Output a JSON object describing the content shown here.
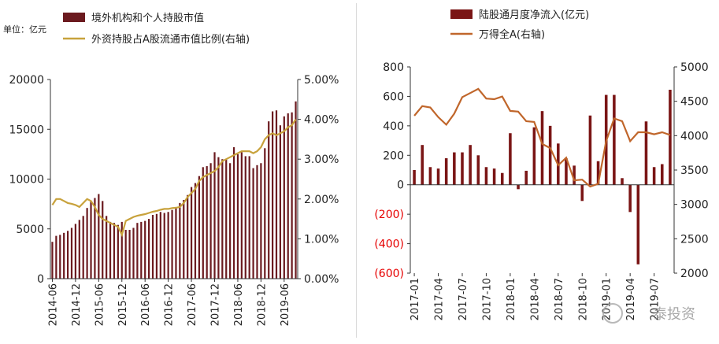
{
  "left": {
    "unit_label": "单位：亿元",
    "legend": {
      "bar": "境外机构和个人持股市值",
      "line": "外资持股占A股流通市值比例(右轴)"
    },
    "colors": {
      "bar": "#6b1a1f",
      "line": "#c8a23c"
    },
    "chart_data": {
      "type": "bar",
      "y_ticks": [
        "0",
        "5000",
        "10000",
        "15000",
        "20000"
      ],
      "ylim": [
        0,
        20000
      ],
      "y2_ticks": [
        "0.00%",
        "1.00%",
        "2.00%",
        "3.00%",
        "4.00%",
        "5.00%"
      ],
      "y2lim": [
        0,
        5
      ],
      "x_ticks": [
        "2014-06",
        "2014-12",
        "2015-06",
        "2015-12",
        "2016-06",
        "2016-12",
        "2017-06",
        "2017-12",
        "2018-06",
        "2018-12",
        "2019-06"
      ],
      "categories": [
        "2014-06",
        "2014-07",
        "2014-08",
        "2014-09",
        "2014-10",
        "2014-11",
        "2014-12",
        "2015-01",
        "2015-02",
        "2015-03",
        "2015-04",
        "2015-05",
        "2015-06",
        "2015-07",
        "2015-08",
        "2015-09",
        "2015-10",
        "2015-11",
        "2015-12",
        "2016-01",
        "2016-02",
        "2016-03",
        "2016-04",
        "2016-05",
        "2016-06",
        "2016-07",
        "2016-08",
        "2016-09",
        "2016-10",
        "2016-11",
        "2016-12",
        "2017-01",
        "2017-02",
        "2017-03",
        "2017-04",
        "2017-05",
        "2017-06",
        "2017-07",
        "2017-08",
        "2017-09",
        "2017-10",
        "2017-11",
        "2017-12",
        "2018-01",
        "2018-02",
        "2018-03",
        "2018-04",
        "2018-05",
        "2018-06",
        "2018-07",
        "2018-08",
        "2018-09",
        "2018-10",
        "2018-11",
        "2018-12",
        "2019-01",
        "2019-02",
        "2019-03",
        "2019-04",
        "2019-05",
        "2019-06",
        "2019-07",
        "2019-08",
        "2019-09"
      ],
      "series": [
        {
          "name": "境外机构和个人持股市值",
          "type": "bar",
          "axis": "left",
          "values": [
            3700,
            4300,
            4400,
            4600,
            4800,
            5100,
            5500,
            5900,
            6300,
            7100,
            7800,
            8100,
            8500,
            7800,
            6300,
            5700,
            5600,
            5400,
            5700,
            4900,
            4900,
            5100,
            5600,
            5700,
            5800,
            6000,
            6400,
            6500,
            6700,
            6600,
            6700,
            6900,
            7100,
            7600,
            7900,
            8400,
            9200,
            9600,
            10300,
            11200,
            11300,
            11600,
            12700,
            12200,
            12000,
            12000,
            11600,
            13200,
            12500,
            12700,
            12300,
            12300,
            11100,
            11400,
            11600,
            13100,
            15800,
            16800,
            16900,
            15400,
            16300,
            16600,
            16700,
            17800
          ]
        },
        {
          "name": "外资持股占A股流通市值比例(右轴)",
          "type": "line",
          "axis": "right",
          "values": [
            1.85,
            2.0,
            2.0,
            1.95,
            1.9,
            1.88,
            1.85,
            1.8,
            1.9,
            2.0,
            1.95,
            1.8,
            1.6,
            1.5,
            1.45,
            1.4,
            1.35,
            1.3,
            1.1,
            1.45,
            1.5,
            1.55,
            1.58,
            1.6,
            1.62,
            1.65,
            1.68,
            1.7,
            1.73,
            1.75,
            1.75,
            1.77,
            1.78,
            1.8,
            1.9,
            2.05,
            2.15,
            2.25,
            2.45,
            2.55,
            2.6,
            2.65,
            2.7,
            2.8,
            2.95,
            3.0,
            3.05,
            3.1,
            3.15,
            3.2,
            3.2,
            3.2,
            3.15,
            3.2,
            3.3,
            3.5,
            3.6,
            3.65,
            3.6,
            3.65,
            3.7,
            3.8,
            3.85,
            4.0
          ]
        }
      ]
    }
  },
  "right": {
    "legend": {
      "bar": "陆股通月度净流入(亿元)",
      "line": "万得全A(右轴)"
    },
    "colors": {
      "bar": "#7a1515",
      "line": "#c0662b",
      "negative_tick": "#e60000"
    },
    "chart_data": {
      "type": "bar",
      "y_ticks": [
        "(600)",
        "(400)",
        "(200)",
        "0",
        "200",
        "400",
        "600",
        "800"
      ],
      "ylim": [
        -600,
        800
      ],
      "y2_ticks": [
        "2000",
        "2500",
        "3000",
        "3500",
        "4000",
        "4500",
        "5000"
      ],
      "y2lim": [
        2000,
        5000
      ],
      "x_ticks": [
        "2017-01",
        "2017-04",
        "2017-07",
        "2017-10",
        "2018-01",
        "2018-04",
        "2018-07",
        "2018-10",
        "2019-01",
        "2019-04",
        "2019-07"
      ],
      "categories": [
        "2017-01",
        "2017-02",
        "2017-03",
        "2017-04",
        "2017-05",
        "2017-06",
        "2017-07",
        "2017-08",
        "2017-09",
        "2017-10",
        "2017-11",
        "2017-12",
        "2018-01",
        "2018-02",
        "2018-03",
        "2018-04",
        "2018-05",
        "2018-06",
        "2018-07",
        "2018-08",
        "2018-09",
        "2018-10",
        "2018-11",
        "2018-12",
        "2019-01",
        "2019-02",
        "2019-03",
        "2019-04",
        "2019-05",
        "2019-06",
        "2019-07",
        "2019-08",
        "2019-09"
      ],
      "series": [
        {
          "name": "陆股通月度净流入(亿元)",
          "type": "bar",
          "axis": "left",
          "values": [
            100,
            270,
            120,
            110,
            180,
            220,
            220,
            270,
            200,
            120,
            110,
            80,
            350,
            -30,
            95,
            390,
            500,
            400,
            280,
            180,
            130,
            -110,
            470,
            160,
            610,
            610,
            45,
            -185,
            -540,
            430,
            120,
            140,
            645
          ]
        },
        {
          "name": "万得全A(右轴)",
          "type": "line",
          "axis": "right",
          "values": [
            4290,
            4430,
            4410,
            4270,
            4160,
            4320,
            4560,
            4620,
            4680,
            4540,
            4530,
            4570,
            4360,
            4350,
            4210,
            4200,
            3880,
            3820,
            3570,
            3680,
            3350,
            3360,
            3260,
            3300,
            3920,
            4250,
            4210,
            3920,
            4050,
            4050,
            4020,
            4050,
            4010
          ]
        }
      ]
    }
  },
  "watermark": "泰投资"
}
